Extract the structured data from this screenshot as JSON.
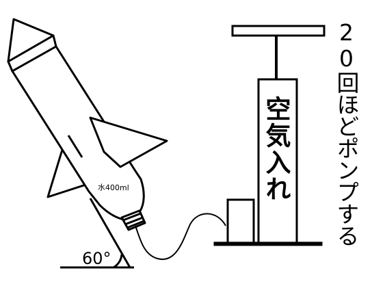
{
  "labels": {
    "pump": "空気入れ",
    "instruction": "20回ほどポンプする",
    "water": "水400ml",
    "angle": "60°"
  },
  "icons": {
    "rocket": "bottle-rocket",
    "pump": "air-pump",
    "hose": "pump-hose",
    "launcher": "launch-angle-triangle"
  },
  "colors": {
    "line": "#000000",
    "fill": "#ffffff",
    "ground": "#000000"
  }
}
